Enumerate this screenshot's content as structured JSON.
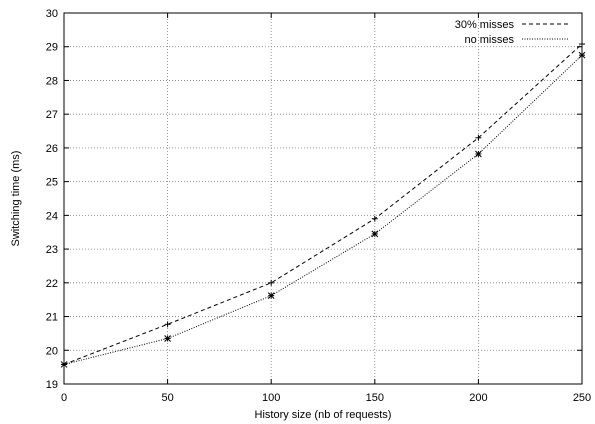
{
  "chart_data": {
    "type": "line",
    "title": "",
    "xlabel": "History size (nb of requests)",
    "ylabel": "Switching time (ms)",
    "xlim": [
      0,
      250
    ],
    "ylim": [
      19,
      30
    ],
    "xticks": [
      0,
      50,
      100,
      150,
      200,
      250
    ],
    "yticks": [
      19,
      20,
      21,
      22,
      23,
      24,
      25,
      26,
      27,
      28,
      29,
      30
    ],
    "grid": true,
    "legend_position": "top-right",
    "x": [
      0,
      50,
      100,
      150,
      200,
      250
    ],
    "series": [
      {
        "name": "30% misses",
        "values": [
          19.58,
          20.77,
          22.0,
          23.9,
          26.3,
          29.08
        ],
        "line_style": "dashed",
        "marker": "plus"
      },
      {
        "name": "no misses",
        "values": [
          19.58,
          20.35,
          21.62,
          23.45,
          25.82,
          28.75
        ],
        "line_style": "dotted",
        "marker": "star"
      }
    ],
    "colors": {
      "line": "#000000",
      "grid": "#7f7f7f",
      "background": "#ffffff"
    }
  }
}
